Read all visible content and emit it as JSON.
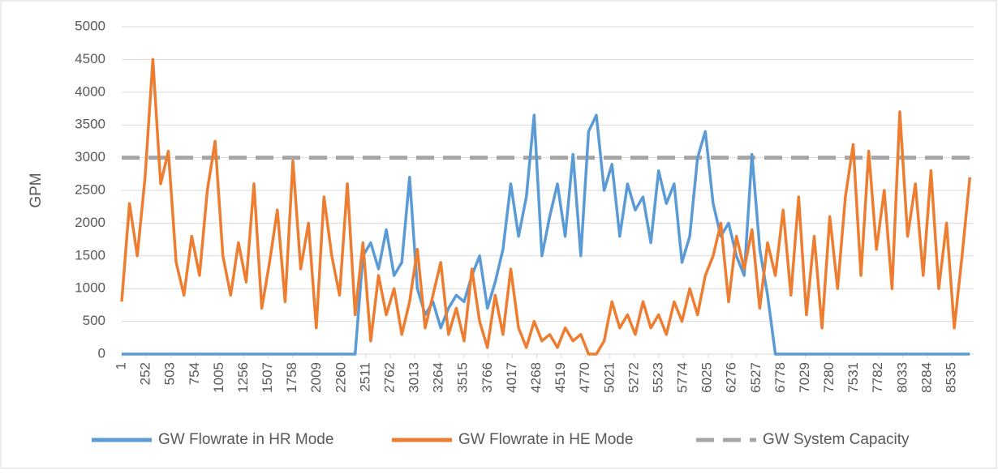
{
  "chart_data": {
    "type": "line",
    "x": [
      1,
      81,
      161,
      241,
      321,
      401,
      481,
      561,
      641,
      721,
      801,
      881,
      961,
      1041,
      1121,
      1201,
      1281,
      1361,
      1441,
      1521,
      1601,
      1681,
      1761,
      1841,
      1921,
      2001,
      2081,
      2161,
      2241,
      2321,
      2401,
      2481,
      2561,
      2641,
      2721,
      2801,
      2881,
      2961,
      3041,
      3121,
      3201,
      3281,
      3361,
      3441,
      3521,
      3601,
      3681,
      3761,
      3841,
      3921,
      4001,
      4081,
      4161,
      4241,
      4321,
      4401,
      4481,
      4561,
      4641,
      4721,
      4801,
      4881,
      4961,
      5041,
      5121,
      5201,
      5281,
      5361,
      5441,
      5521,
      5601,
      5681,
      5761,
      5841,
      5921,
      6001,
      6081,
      6161,
      6241,
      6321,
      6401,
      6481,
      6561,
      6641,
      6721,
      6801,
      6881,
      6961,
      7041,
      7121,
      7201,
      7281,
      7361,
      7441,
      7521,
      7601,
      7681,
      7761,
      7841,
      7921,
      8001,
      8081,
      8161,
      8241,
      8321,
      8401,
      8481,
      8561,
      8641,
      8721
    ],
    "series": [
      {
        "name": "GW Flowrate in HR Mode",
        "color": "#5b9bd5",
        "values": [
          0,
          0,
          0,
          0,
          0,
          0,
          0,
          0,
          0,
          0,
          0,
          0,
          0,
          0,
          0,
          0,
          0,
          0,
          0,
          0,
          0,
          0,
          0,
          0,
          0,
          0,
          0,
          0,
          0,
          0,
          0,
          1500,
          1700,
          1300,
          1900,
          1200,
          1400,
          2700,
          1000,
          600,
          800,
          400,
          700,
          900,
          800,
          1200,
          1500,
          700,
          1100,
          1600,
          2600,
          1800,
          2400,
          3650,
          1500,
          2100,
          2600,
          1800,
          3050,
          1500,
          3400,
          3650,
          2500,
          2900,
          1800,
          2600,
          2200,
          2400,
          1700,
          2800,
          2300,
          2600,
          1400,
          1800,
          3000,
          3400,
          2300,
          1800,
          2000,
          1500,
          1200,
          3050,
          1600,
          900,
          0,
          0,
          0,
          0,
          0,
          0,
          0,
          0,
          0,
          0,
          0,
          0,
          0,
          0,
          0,
          0,
          0,
          0,
          0,
          0,
          0,
          0,
          0,
          0,
          0,
          0
        ]
      },
      {
        "name": "GW Flowrate in HE Mode",
        "color": "#ed7d31",
        "values": [
          800,
          2300,
          1500,
          2700,
          4500,
          2600,
          3100,
          1400,
          900,
          1800,
          1200,
          2500,
          3250,
          1500,
          900,
          1700,
          1100,
          2600,
          700,
          1400,
          2200,
          800,
          2950,
          1300,
          2000,
          400,
          2400,
          1500,
          900,
          2600,
          600,
          1700,
          200,
          1200,
          600,
          1000,
          300,
          800,
          1600,
          400,
          900,
          1400,
          300,
          700,
          200,
          1300,
          500,
          100,
          900,
          300,
          1300,
          400,
          100,
          500,
          200,
          300,
          100,
          400,
          200,
          300,
          0,
          0,
          200,
          800,
          400,
          600,
          300,
          800,
          400,
          600,
          300,
          800,
          500,
          1000,
          600,
          1200,
          1500,
          2000,
          800,
          1800,
          1300,
          1900,
          700,
          1700,
          1200,
          2200,
          900,
          2400,
          600,
          1800,
          400,
          2100,
          1000,
          2400,
          3200,
          1200,
          3100,
          1600,
          2500,
          1000,
          3700,
          1800,
          2600,
          1200,
          2800,
          1000,
          2000,
          400,
          1500,
          2700
        ]
      },
      {
        "name": "GW System Capacity",
        "color": "#a5a5a5",
        "value": 3000,
        "dashed": true
      }
    ],
    "y_label": "GPM",
    "xlim": [
      1,
      8760
    ],
    "xticks": [
      1,
      252,
      503,
      754,
      1005,
      1256,
      1507,
      1758,
      2009,
      2260,
      2511,
      2762,
      3013,
      3264,
      3515,
      3766,
      4017,
      4268,
      4519,
      4770,
      5021,
      5272,
      5523,
      5774,
      6025,
      6276,
      6527,
      6778,
      7029,
      7280,
      7531,
      7782,
      8033,
      8284,
      8535
    ],
    "ylim": [
      0,
      5000
    ],
    "yticks": [
      0,
      500,
      1000,
      1500,
      2000,
      2500,
      3000,
      3500,
      4000,
      4500,
      5000
    ],
    "grid": true,
    "legend": "bottom"
  }
}
